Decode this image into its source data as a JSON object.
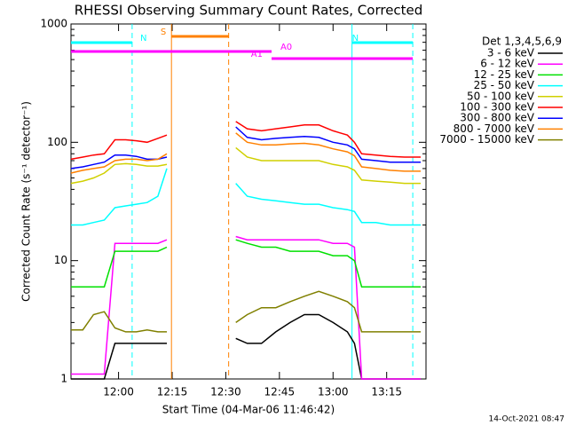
{
  "chart_data": {
    "type": "line",
    "title": "RHESSI Observing Summary Count Rates, Corrected",
    "x_label": "Start Time (04-Mar-06 11:46:42)",
    "y_label": "Corrected Count Rate (s⁻¹ detector⁻¹)",
    "legend_title": "Det 1,3,4,5,6,9",
    "footer": "14-Oct-2021 08:47",
    "log_y": true,
    "xlim": [
      706.7,
      806
    ],
    "ylim": [
      1,
      1000
    ],
    "xticks": [
      {
        "value": 720,
        "label": "12:00"
      },
      {
        "value": 735,
        "label": "12:15"
      },
      {
        "value": 750,
        "label": "12:30"
      },
      {
        "value": 765,
        "label": "12:45"
      },
      {
        "value": 780,
        "label": "13:00"
      },
      {
        "value": 795,
        "label": "13:15"
      }
    ],
    "yticks": [
      1,
      10,
      100,
      1000
    ],
    "x": [
      706.7,
      710,
      713,
      716,
      719,
      722,
      725,
      728,
      731,
      733.5,
      743,
      752.8,
      756,
      760,
      764,
      768,
      772,
      776,
      780,
      784,
      786,
      788,
      792,
      796,
      800,
      804.5
    ],
    "series": [
      {
        "name": "3 - 6 keV",
        "color": "#000000",
        "values": [
          1,
          1,
          1,
          1,
          2,
          2,
          2,
          2,
          2,
          2,
          null,
          2.2,
          2,
          2,
          2.5,
          3,
          3.5,
          3.5,
          3,
          2.5,
          2,
          1,
          1,
          1,
          1,
          1
        ]
      },
      {
        "name": "6 - 12 keV",
        "color": "#ff00ff",
        "values": [
          1.1,
          1.1,
          1.1,
          1.1,
          14,
          14,
          14,
          14,
          14,
          15,
          null,
          16,
          15,
          15,
          15,
          15,
          15,
          15,
          14,
          14,
          13,
          1,
          1,
          1,
          1,
          1
        ]
      },
      {
        "name": "12 - 25 keV",
        "color": "#00e000",
        "values": [
          6,
          6,
          6,
          6,
          12,
          12,
          12,
          12,
          12,
          13,
          null,
          15,
          14,
          13,
          13,
          12,
          12,
          12,
          11,
          11,
          10,
          6,
          6,
          6,
          6,
          6
        ]
      },
      {
        "name": "25 - 50 keV",
        "color": "#00ffff",
        "values": [
          20,
          20,
          21,
          22,
          28,
          29,
          30,
          31,
          35,
          60,
          null,
          45,
          35,
          33,
          32,
          31,
          30,
          30,
          28,
          27,
          26,
          21,
          21,
          20,
          20,
          20
        ]
      },
      {
        "name": "50 - 100 keV",
        "color": "#d0d000",
        "values": [
          45,
          47,
          50,
          55,
          65,
          66,
          65,
          63,
          63,
          65,
          null,
          90,
          75,
          70,
          70,
          70,
          70,
          70,
          65,
          62,
          58,
          48,
          47,
          46,
          45,
          45
        ]
      },
      {
        "name": "100 - 300 keV",
        "color": "#ff0000",
        "values": [
          72,
          75,
          78,
          80,
          105,
          105,
          103,
          100,
          108,
          115,
          null,
          150,
          130,
          125,
          130,
          135,
          140,
          140,
          125,
          115,
          100,
          80,
          78,
          76,
          75,
          75
        ]
      },
      {
        "name": "300 - 800 keV",
        "color": "#0000ff",
        "values": [
          60,
          62,
          65,
          68,
          78,
          78,
          76,
          72,
          72,
          75,
          null,
          135,
          110,
          105,
          108,
          110,
          112,
          110,
          100,
          95,
          88,
          72,
          70,
          68,
          68,
          68
        ]
      },
      {
        "name": "800 - 7000 keV",
        "color": "#ff8000",
        "values": [
          55,
          58,
          60,
          62,
          70,
          72,
          72,
          70,
          72,
          80,
          null,
          120,
          100,
          95,
          95,
          97,
          98,
          95,
          88,
          83,
          77,
          62,
          60,
          58,
          57,
          57
        ]
      },
      {
        "name": "7000 - 15000 keV",
        "color": "#808000",
        "values": [
          2.6,
          2.6,
          3.5,
          3.7,
          2.7,
          2.5,
          2.5,
          2.6,
          2.5,
          2.5,
          null,
          3,
          3.5,
          4,
          4,
          4.5,
          5,
          5.5,
          5,
          4.5,
          4,
          2.5,
          2.5,
          2.5,
          2.5,
          2.5
        ]
      }
    ],
    "flags": [
      {
        "label": "N",
        "color": "#00ffff",
        "start": 706.7,
        "end": 723.8
      },
      {
        "label": "N",
        "color": "#00ffff",
        "start": 785.3,
        "end": 802.3
      },
      {
        "label": "S",
        "color": "#ff8000",
        "start": 734.8,
        "end": 750.8
      },
      {
        "label": "A0",
        "color": "#ff00ff",
        "start": 706.7,
        "end": 762.8
      },
      {
        "label": "A1",
        "color": "#ff00ff",
        "start": 762.8,
        "end": 802.3
      }
    ],
    "markers": [
      {
        "x": 723.8,
        "color": "#00ffff",
        "dashed": true
      },
      {
        "x": 734.8,
        "color": "#ff8000",
        "dashed": false
      },
      {
        "x": 750.8,
        "color": "#ff8000",
        "dashed": true
      },
      {
        "x": 785.3,
        "color": "#00ffff",
        "dashed": false
      },
      {
        "x": 802.3,
        "color": "#00ffff",
        "dashed": true
      }
    ]
  }
}
